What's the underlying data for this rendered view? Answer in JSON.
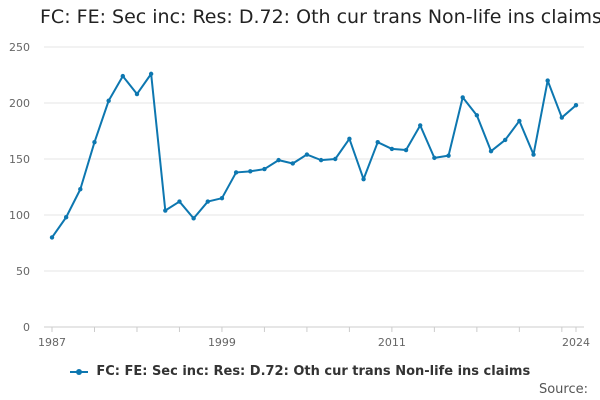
{
  "chart_data": {
    "type": "line",
    "title": "FC: FE: Sec inc: Res: D.72: Oth cur trans Non-life ins claims",
    "xlabel": "",
    "ylabel": "",
    "x": [
      1987,
      1988,
      1989,
      1990,
      1991,
      1992,
      1993,
      1994,
      1995,
      1996,
      1997,
      1998,
      1999,
      2000,
      2001,
      2002,
      2003,
      2004,
      2005,
      2006,
      2007,
      2008,
      2009,
      2010,
      2011,
      2012,
      2013,
      2014,
      2015,
      2016,
      2017,
      2018,
      2019,
      2020,
      2021,
      2022,
      2023,
      2024
    ],
    "series": [
      {
        "name": "FC: FE: Sec inc: Res: D.72: Oth cur trans Non-life ins claims",
        "color": "#0d77b0",
        "values": [
          80,
          98,
          123,
          165,
          202,
          224,
          208,
          226,
          104,
          112,
          97,
          112,
          115,
          138,
          139,
          141,
          149,
          146,
          154,
          149,
          150,
          168,
          132,
          165,
          159,
          158,
          180,
          151,
          153,
          205,
          189,
          157,
          167,
          184,
          154,
          220,
          187,
          198
        ]
      }
    ],
    "xlim": [
      1987,
      2024
    ],
    "ylim": [
      0,
      250
    ],
    "y_ticks": [
      0,
      50,
      100,
      150,
      200,
      250
    ],
    "x_tick_labels": [
      "1987",
      "1999",
      "2011",
      "2024"
    ],
    "x_tick_label_years": [
      1987,
      1999,
      2011,
      2024
    ],
    "grid": true,
    "legend_position": "bottom"
  },
  "footer": {
    "source_label": "Source:"
  }
}
